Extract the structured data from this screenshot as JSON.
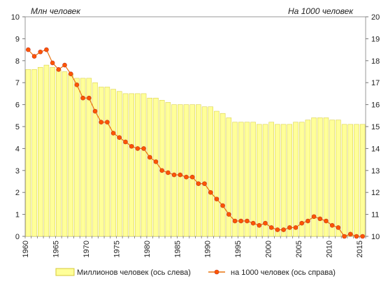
{
  "chart_data": {
    "type": "bar",
    "title": "",
    "ylabel_left": "Млн  человек",
    "ylabel_right": "На 1000 человек",
    "ylim_left": [
      0,
      10
    ],
    "ylim_right": [
      10,
      20
    ],
    "yticks_left": [
      "0",
      "1",
      "2",
      "3",
      "4",
      "5",
      "6",
      "7",
      "8",
      "9",
      "10"
    ],
    "yticks_right": [
      "10",
      "11",
      "12",
      "13",
      "14",
      "15",
      "16",
      "17",
      "18",
      "19",
      "20"
    ],
    "xlim": [
      1960,
      2016
    ],
    "xticks": [
      "1960",
      "1965",
      "1970",
      "1975",
      "1980",
      "1985",
      "1990",
      "1995",
      "2000",
      "2005",
      "2010",
      "2015"
    ],
    "grid": false,
    "legend_position": "bottom",
    "colors": {
      "bars": "#ffff99",
      "bar_stroke": "#d4c838",
      "line": "#e8730f",
      "marker": "#ff5500"
    },
    "x": [
      1961,
      1962,
      1963,
      1964,
      1965,
      1966,
      1967,
      1968,
      1969,
      1970,
      1971,
      1972,
      1973,
      1974,
      1975,
      1976,
      1977,
      1978,
      1979,
      1980,
      1981,
      1982,
      1983,
      1984,
      1985,
      1986,
      1987,
      1988,
      1989,
      1990,
      1991,
      1992,
      1993,
      1994,
      1995,
      1996,
      1997,
      1998,
      1999,
      2000,
      2001,
      2002,
      2003,
      2004,
      2005,
      2006,
      2007,
      2008,
      2009,
      2010,
      2011,
      2012,
      2013,
      2014,
      2015,
      2016
    ],
    "series": [
      {
        "name": "Миллионов   человек (ось слева)",
        "type": "bar",
        "axis": "left",
        "values": [
          7.6,
          7.6,
          7.7,
          7.8,
          7.7,
          7.6,
          7.5,
          7.4,
          7.2,
          7.2,
          7.2,
          7.0,
          6.8,
          6.8,
          6.7,
          6.6,
          6.5,
          6.5,
          6.5,
          6.5,
          6.3,
          6.3,
          6.2,
          6.1,
          6.0,
          6.0,
          6.0,
          6.0,
          6.0,
          5.9,
          5.9,
          5.7,
          5.6,
          5.4,
          5.2,
          5.2,
          5.2,
          5.2,
          5.1,
          5.1,
          5.2,
          5.1,
          5.1,
          5.1,
          5.2,
          5.2,
          5.3,
          5.4,
          5.4,
          5.4,
          5.3,
          5.3,
          5.1,
          5.1,
          5.1,
          5.1
        ]
      },
      {
        "name": "на 1000 человек (ось справа)",
        "type": "line",
        "axis": "right",
        "values": [
          18.5,
          18.2,
          18.4,
          18.5,
          17.9,
          17.6,
          17.8,
          17.4,
          16.9,
          16.3,
          16.3,
          15.7,
          15.2,
          15.2,
          14.7,
          14.5,
          14.3,
          14.1,
          14.0,
          14.0,
          13.6,
          13.4,
          13.0,
          12.9,
          12.8,
          12.8,
          12.7,
          12.7,
          12.4,
          12.4,
          12.0,
          11.7,
          11.4,
          11.0,
          10.7,
          10.7,
          10.7,
          10.6,
          10.5,
          10.6,
          10.4,
          10.3,
          10.3,
          10.4,
          10.4,
          10.6,
          10.7,
          10.9,
          10.8,
          10.7,
          10.5,
          10.4,
          10.0,
          10.1,
          10.0,
          10.0
        ]
      }
    ]
  }
}
